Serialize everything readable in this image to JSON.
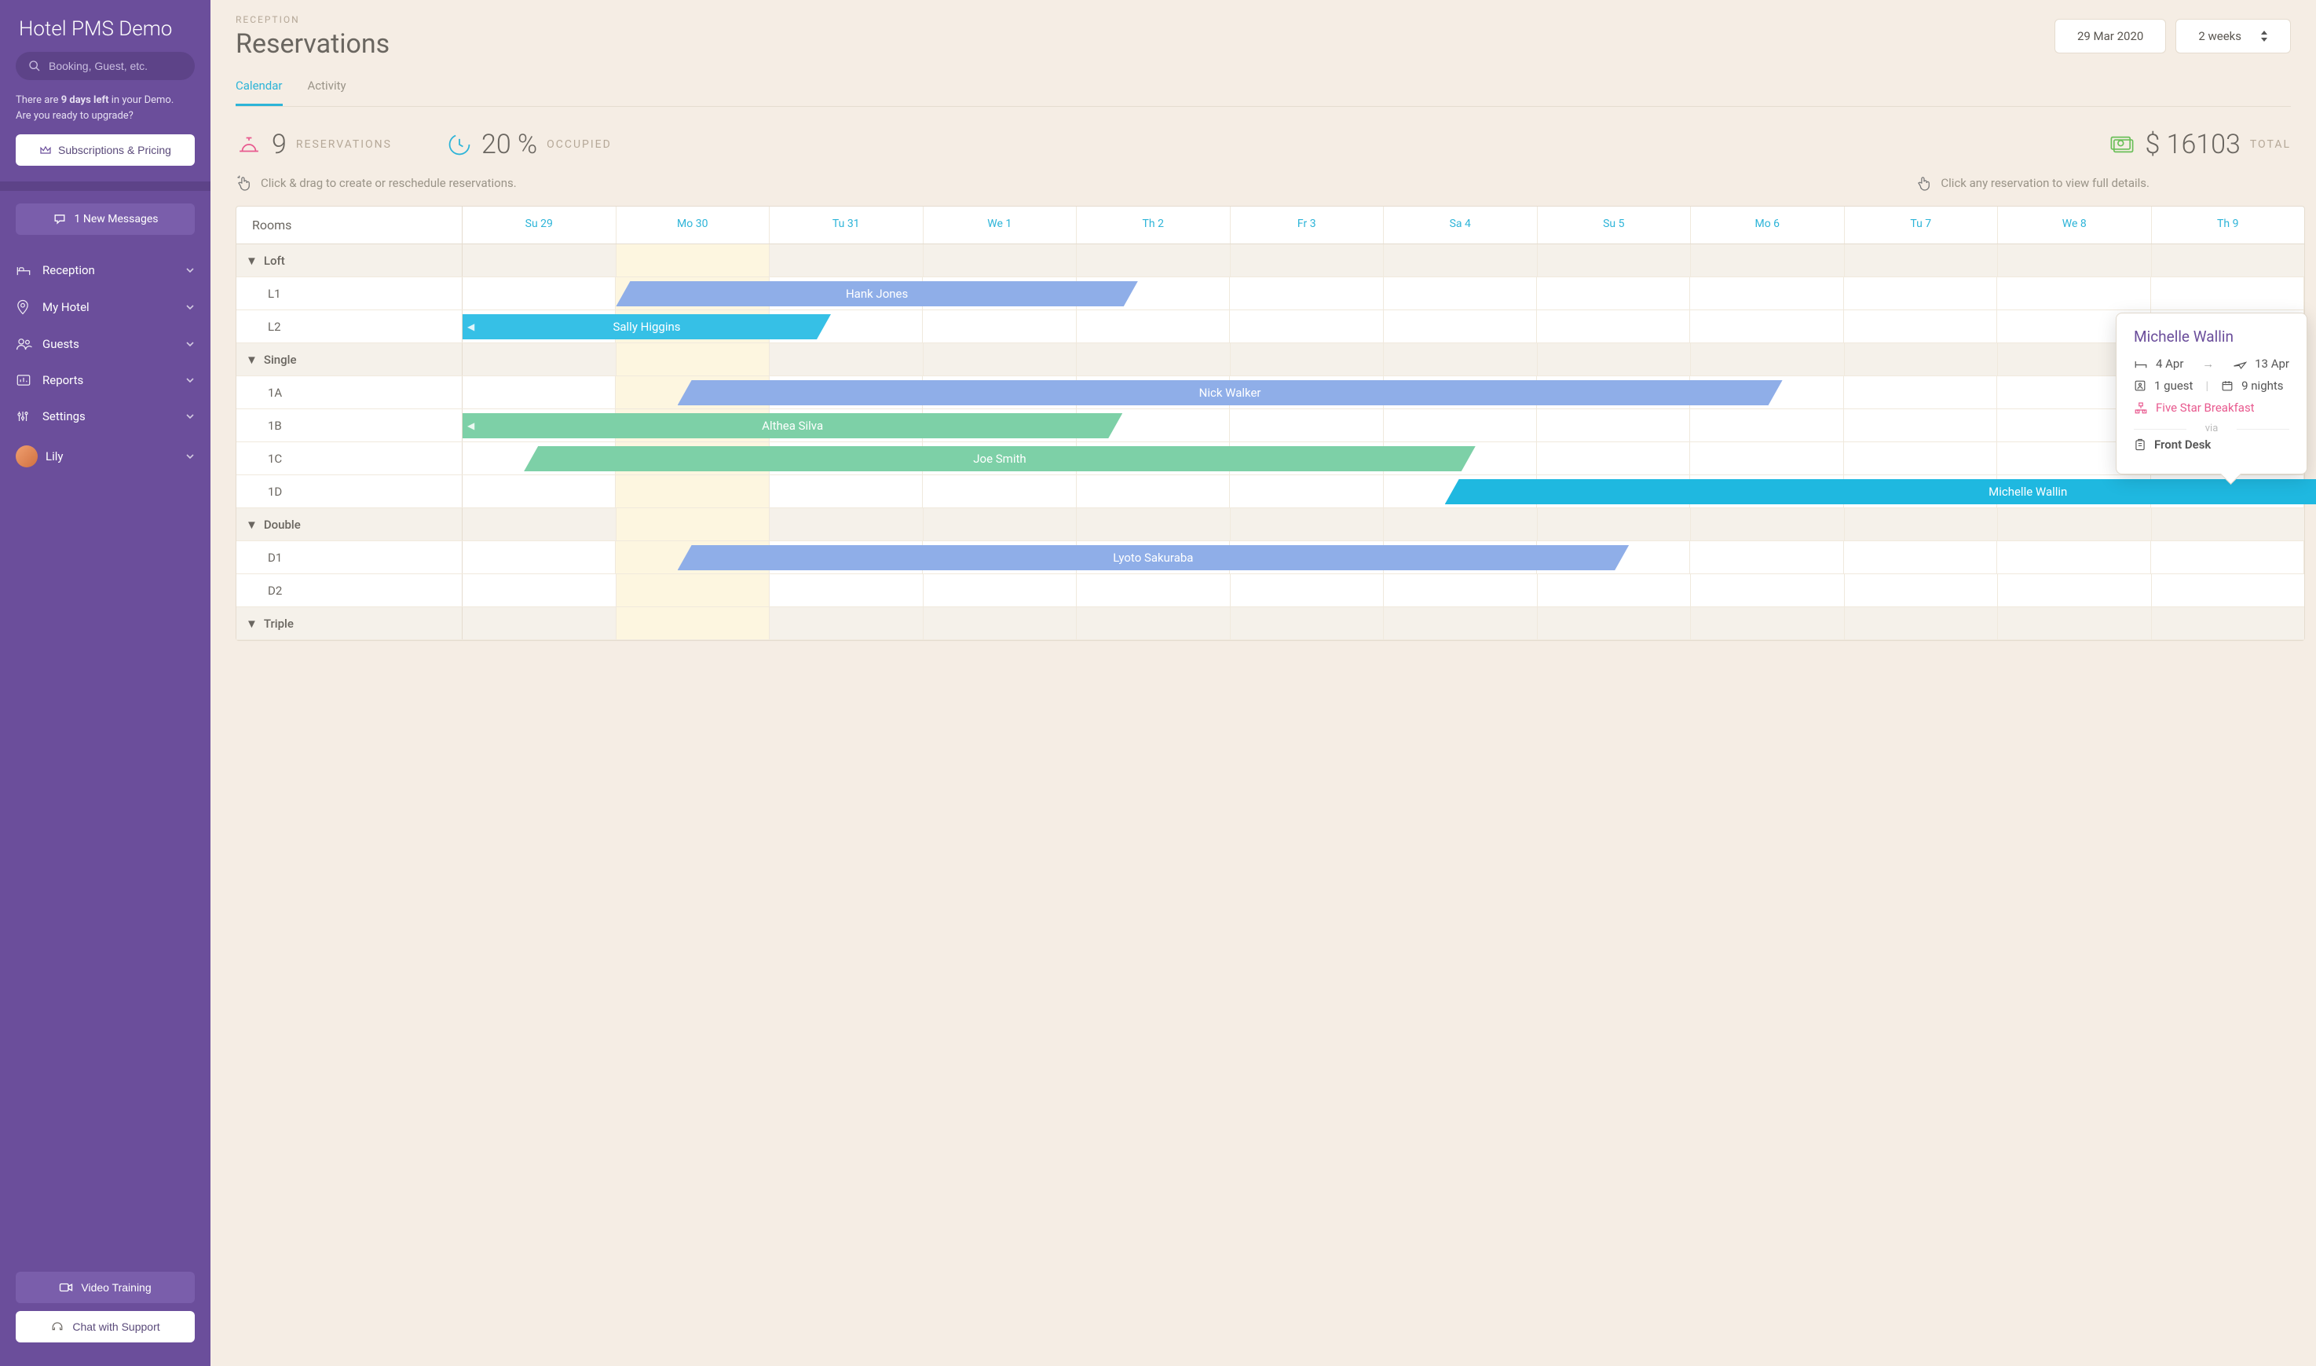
{
  "sidebar": {
    "title": "Hotel PMS Demo",
    "search_placeholder": "Booking, Guest, etc.",
    "demo_prefix": "There are ",
    "demo_bold": "9 days left",
    "demo_suffix": " in your Demo.",
    "demo_line2": "Are you ready to upgrade?",
    "pricing_btn": "Subscriptions & Pricing",
    "messages": "1 New Messages",
    "nav": [
      {
        "label": "Reception",
        "icon": "bed"
      },
      {
        "label": "My Hotel",
        "icon": "pin"
      },
      {
        "label": "Guests",
        "icon": "people"
      },
      {
        "label": "Reports",
        "icon": "report"
      },
      {
        "label": "Settings",
        "icon": "sliders"
      },
      {
        "label": "Lily",
        "icon": "avatar"
      }
    ],
    "video_btn": "Video Training",
    "support_btn": "Chat with Support"
  },
  "header": {
    "breadcrumb": "RECEPTION",
    "title": "Reservations",
    "date": "29 Mar 2020",
    "range": "2 weeks",
    "tabs": [
      "Calendar",
      "Activity"
    ],
    "active_tab": 0
  },
  "stats": {
    "reservations": {
      "value": "9",
      "label": "RESERVATIONS",
      "color": "#e85a8f"
    },
    "occupied": {
      "value": "20 %",
      "label": "OCCUPIED",
      "color": "#2db4d8"
    },
    "total": {
      "value": "$ 16103",
      "label": "TOTAL",
      "color": "#6bbf59"
    }
  },
  "hints": {
    "drag": "Click & drag to create or reschedule reservations.",
    "click": "Click any reservation to view full details."
  },
  "calendar": {
    "rooms_header": "Rooms",
    "days": [
      "Su 29",
      "Mo 30",
      "Tu 31",
      "We 1",
      "Th 2",
      "Fr 3",
      "Sa 4",
      "Su 5",
      "Mo 6",
      "Tu 7",
      "We 8",
      "Th 9"
    ],
    "shade_col": 1,
    "groups": [
      {
        "name": "Loft",
        "rooms": [
          {
            "name": "L1",
            "res": [
              {
                "guest": "Hank Jones",
                "start": 1,
                "span": 3.4,
                "color": "#8faee8"
              }
            ]
          },
          {
            "name": "L2",
            "res": [
              {
                "guest": "Sally Higgins",
                "start": 0,
                "span": 2.4,
                "color": "#36c0e6",
                "left_cut": true,
                "notch": true
              }
            ]
          }
        ]
      },
      {
        "name": "Single",
        "rooms": [
          {
            "name": "1A",
            "res": [
              {
                "guest": "Nick Walker",
                "start": 1.4,
                "span": 7.2,
                "color": "#8faee8"
              }
            ]
          },
          {
            "name": "1B",
            "res": [
              {
                "guest": "Althea Silva",
                "start": 0,
                "span": 4.3,
                "color": "#7dd0a7",
                "left_cut": true,
                "notch": true
              }
            ]
          },
          {
            "name": "1C",
            "res": [
              {
                "guest": "Joe Smith",
                "start": 0.4,
                "span": 6.2,
                "color": "#7dd0a7"
              }
            ]
          },
          {
            "name": "1D",
            "res": [
              {
                "guest": "Michelle Wallin",
                "start": 6.4,
                "span": 7.6,
                "color": "#1fb8e0"
              }
            ]
          }
        ]
      },
      {
        "name": "Double",
        "rooms": [
          {
            "name": "D1",
            "res": [
              {
                "guest": "Lyoto Sakuraba",
                "start": 1.4,
                "span": 6.2,
                "color": "#8faee8"
              }
            ]
          },
          {
            "name": "D2",
            "res": []
          }
        ]
      },
      {
        "name": "Triple",
        "rooms": []
      }
    ]
  },
  "popover": {
    "guest": "Michelle Wallin",
    "checkin": "4 Apr",
    "checkout": "13 Apr",
    "guests": "1 guest",
    "nights": "9 nights",
    "plan": "Five Star Breakfast",
    "via": "via",
    "source": "Front Desk",
    "row_key": "1D"
  },
  "colors": {
    "sidebar_bg": "#6b4e9b",
    "accent": "#2db4d8",
    "page_bg": "#f5ede4"
  }
}
